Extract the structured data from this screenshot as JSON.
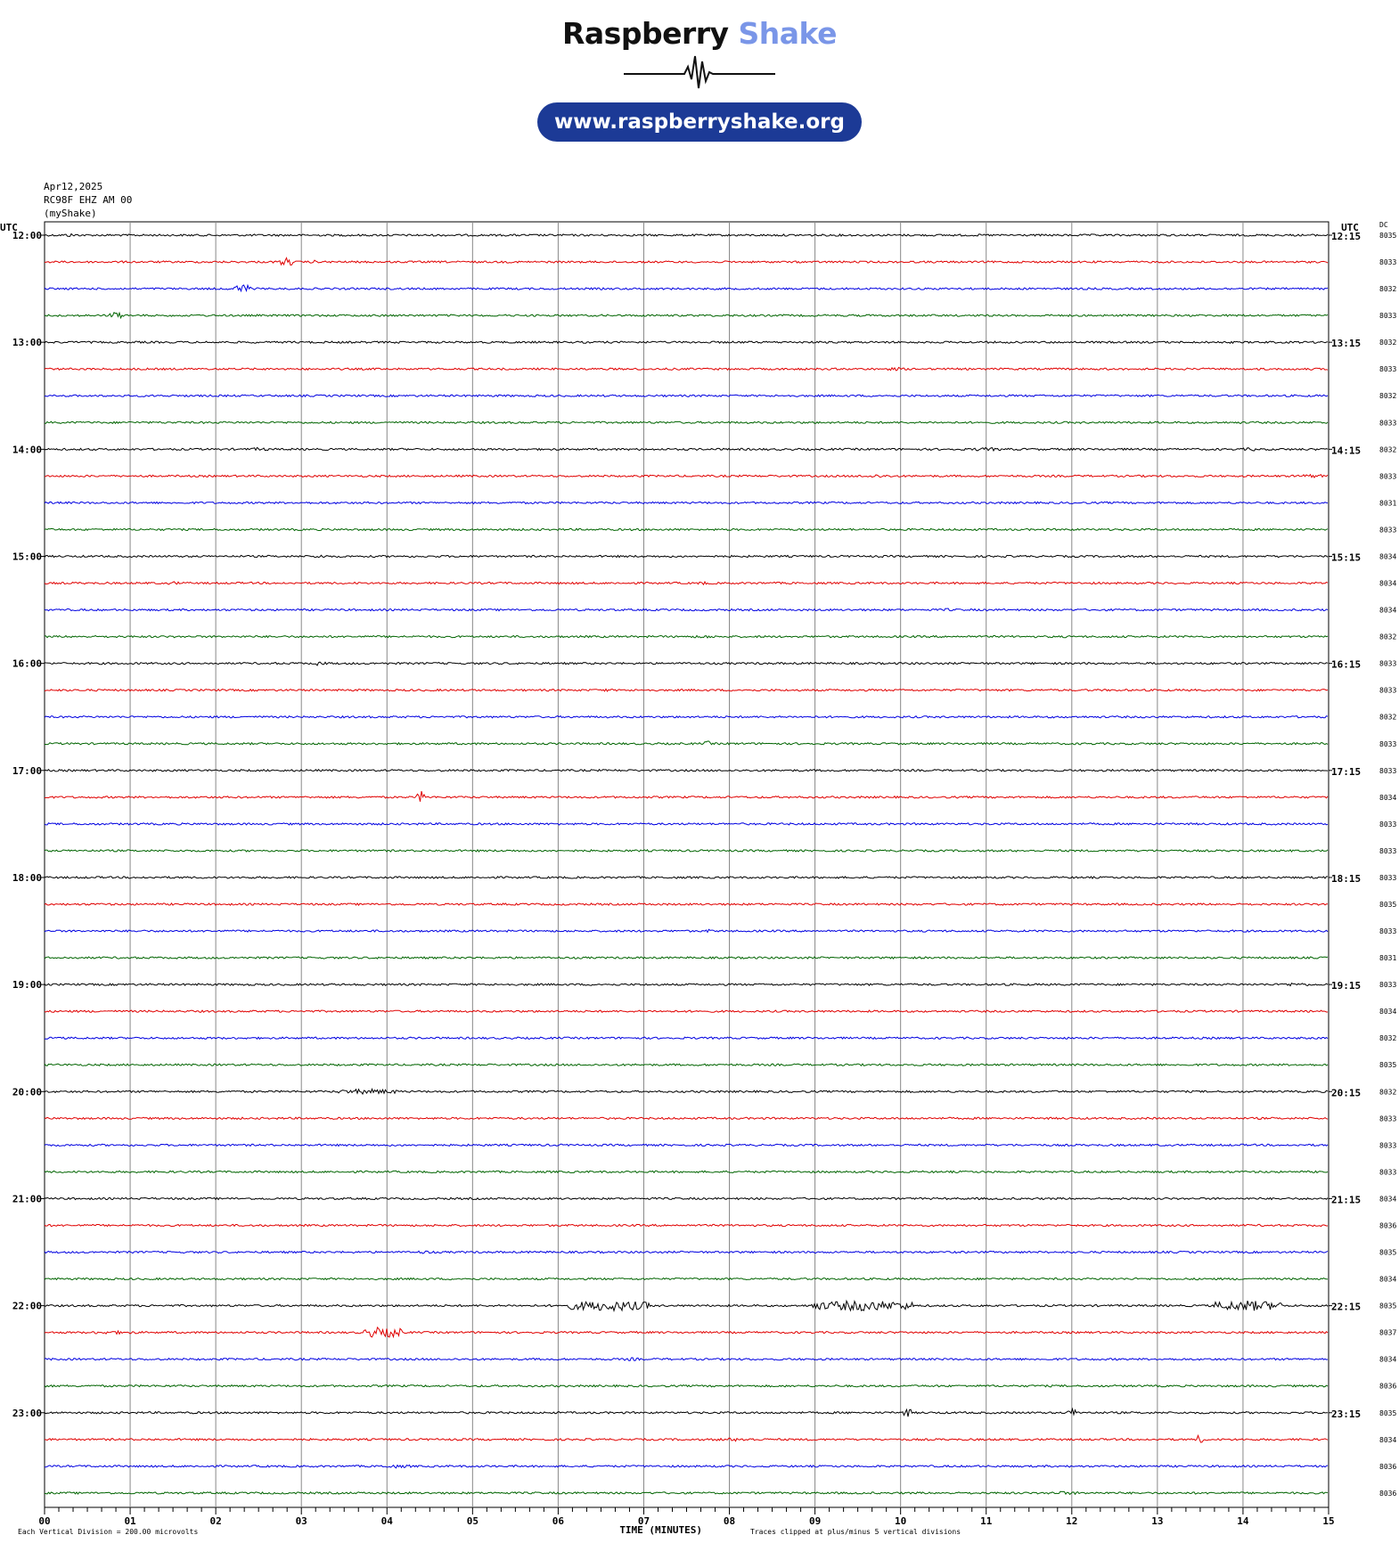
{
  "header": {
    "brand_part1": "Raspberry",
    "brand_part2": "Shake",
    "url": "www.raspberryshake.org"
  },
  "meta": {
    "date": "Apr12,2025",
    "station": "RC98F EHZ AM 00",
    "network": "(myShake)"
  },
  "colors": {
    "trace_cycle": [
      "#000000",
      "#e00000",
      "#0000e0",
      "#006400"
    ],
    "brand_light": "#7a96e8",
    "pill": "#1c3a96"
  },
  "chart_data": {
    "type": "line",
    "subtype": "helicorder",
    "left_axis_title": "UTC",
    "right_axis_title": "UTC",
    "dc_title": "DC",
    "xlabel": "TIME (MINUTES)",
    "footnote_left": "Each Vertical Division =  200.00 microvolts",
    "footnote_right": "Traces clipped at plus/minus 5 vertical divisions",
    "x_ticks": [
      "00",
      "01",
      "02",
      "03",
      "04",
      "05",
      "06",
      "07",
      "08",
      "09",
      "10",
      "11",
      "12",
      "13",
      "14",
      "15"
    ],
    "xlim": [
      0,
      15
    ],
    "minutes_per_line": 15,
    "left_hour_labels": [
      "12:00",
      "13:00",
      "14:00",
      "15:00",
      "16:00",
      "17:00",
      "18:00",
      "19:00",
      "20:00",
      "21:00",
      "22:00",
      "23:00"
    ],
    "right_hour_labels": [
      "12:15",
      "13:15",
      "14:15",
      "15:15",
      "16:15",
      "17:15",
      "18:15",
      "19:15",
      "20:15",
      "21:15",
      "22:15",
      "23:15"
    ],
    "dc_values": [
      "8035",
      "8033",
      "8032",
      "8033",
      "8032",
      "8033",
      "8032",
      "8033",
      "8032",
      "8033",
      "8031",
      "8033",
      "8034",
      "8034",
      "8034",
      "8032",
      "8033",
      "8033",
      "8032",
      "8033",
      "8033",
      "8034",
      "8033",
      "8033",
      "8033",
      "8035",
      "8033",
      "8031",
      "8033",
      "8034",
      "8032",
      "8035",
      "8032",
      "8033",
      "8033",
      "8033",
      "8034",
      "8036",
      "8035",
      "8034",
      "8035",
      "8037",
      "8034",
      "8036",
      "8035",
      "8034",
      "8036",
      "8036"
    ],
    "events": [
      {
        "line": 0,
        "minute": 0.3,
        "amp": 2,
        "dur": 0.1
      },
      {
        "line": 1,
        "minute": 2.82,
        "amp": 5,
        "dur": 0.08
      },
      {
        "line": 1,
        "minute": 3.15,
        "amp": 2,
        "dur": 0.05
      },
      {
        "line": 2,
        "minute": 2.32,
        "amp": 5,
        "dur": 0.12
      },
      {
        "line": 2,
        "minute": 10.65,
        "amp": 2,
        "dur": 0.05
      },
      {
        "line": 3,
        "minute": 0.83,
        "amp": 4,
        "dur": 0.08
      },
      {
        "line": 5,
        "minute": 9.95,
        "amp": 2,
        "dur": 0.1
      },
      {
        "line": 8,
        "minute": 2.5,
        "amp": 2,
        "dur": 0.12
      },
      {
        "line": 8,
        "minute": 11.0,
        "amp": 2,
        "dur": 0.2
      },
      {
        "line": 8,
        "minute": 14.1,
        "amp": 2,
        "dur": 0.1
      },
      {
        "line": 9,
        "minute": 9.7,
        "amp": 2,
        "dur": 0.2
      },
      {
        "line": 9,
        "minute": 14.8,
        "amp": 2,
        "dur": 0.2
      },
      {
        "line": 12,
        "minute": 3.2,
        "amp": 2,
        "dur": 0.1
      },
      {
        "line": 13,
        "minute": 1.52,
        "amp": 2,
        "dur": 0.08
      },
      {
        "line": 13,
        "minute": 7.7,
        "amp": 2,
        "dur": 0.08
      },
      {
        "line": 14,
        "minute": 10.55,
        "amp": 2,
        "dur": 0.05
      },
      {
        "line": 15,
        "minute": 7.7,
        "amp": 2,
        "dur": 0.12
      },
      {
        "line": 16,
        "minute": 3.22,
        "amp": 3,
        "dur": 0.06
      },
      {
        "line": 17,
        "minute": 6.55,
        "amp": 2,
        "dur": 0.05
      },
      {
        "line": 19,
        "minute": 7.75,
        "amp": 3,
        "dur": 0.05
      },
      {
        "line": 21,
        "minute": 4.4,
        "amp": 7,
        "dur": 0.05
      },
      {
        "line": 26,
        "minute": 7.75,
        "amp": 2,
        "dur": 0.05
      },
      {
        "line": 28,
        "minute": 14.6,
        "amp": 2,
        "dur": 0.2
      },
      {
        "line": 32,
        "minute": 3.78,
        "amp": 3,
        "dur": 0.35
      },
      {
        "line": 38,
        "minute": 4.45,
        "amp": 2,
        "dur": 0.1
      },
      {
        "line": 40,
        "minute": 6.6,
        "amp": 6,
        "dur": 0.5
      },
      {
        "line": 40,
        "minute": 9.55,
        "amp": 6,
        "dur": 0.6
      },
      {
        "line": 40,
        "minute": 14.05,
        "amp": 6,
        "dur": 0.4
      },
      {
        "line": 41,
        "minute": 3.88,
        "amp": 6,
        "dur": 0.15
      },
      {
        "line": 41,
        "minute": 4.07,
        "amp": 6,
        "dur": 0.12
      },
      {
        "line": 41,
        "minute": 0.8,
        "amp": 2,
        "dur": 0.3
      },
      {
        "line": 42,
        "minute": 6.85,
        "amp": 2,
        "dur": 0.1
      },
      {
        "line": 44,
        "minute": 10.07,
        "amp": 5,
        "dur": 0.06
      },
      {
        "line": 44,
        "minute": 12.02,
        "amp": 5,
        "dur": 0.06
      },
      {
        "line": 45,
        "minute": 13.5,
        "amp": 6,
        "dur": 0.05
      },
      {
        "line": 45,
        "minute": 8.1,
        "amp": 2,
        "dur": 0.3
      },
      {
        "line": 46,
        "minute": 4.1,
        "amp": 2,
        "dur": 0.2
      },
      {
        "line": 47,
        "minute": 11.9,
        "amp": 2,
        "dur": 0.2
      }
    ]
  }
}
